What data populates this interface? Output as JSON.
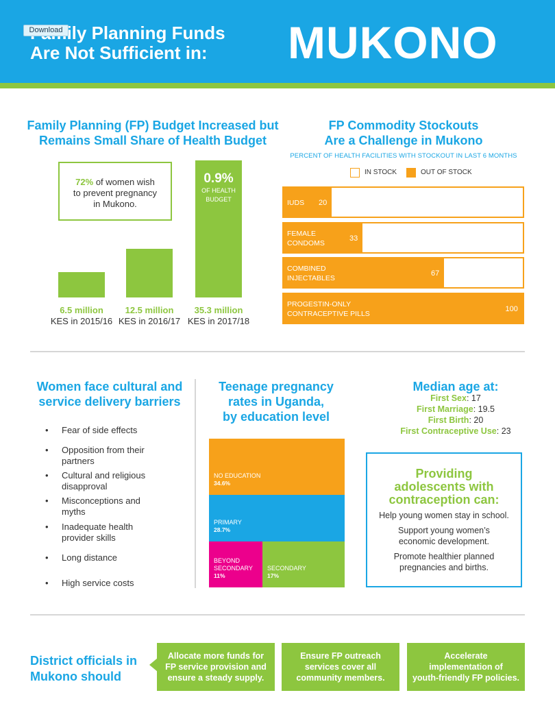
{
  "header": {
    "title_line1": "Family Planning Funds",
    "title_line2": "Are Not Sufficient in:",
    "city": "MUKONO",
    "download_label": "Download",
    "colors": {
      "blue": "#1aa6e4",
      "green": "#8dc63f",
      "orange": "#f7a11a",
      "magenta": "#ec008c"
    }
  },
  "budget": {
    "title_line1": "Family Planning (FP) Budget Increased but",
    "title_line2": "Remains Small Share of Health Budget",
    "callout": {
      "pct": "72%",
      "text1": "of women wish",
      "text2": "to prevent pregnancy",
      "text3": "in Mukono."
    },
    "share": {
      "value": "0.9%",
      "label1": "OF HEALTH",
      "label2": "BUDGET"
    }
  },
  "stockout": {
    "title_line1": "FP Commodity Stockouts",
    "title_line2": "Are a Challenge in Mukono",
    "subtitle": "PERCENT OF HEALTH FACILITIES WITH STOCKOUT IN LAST 6 MONTHS",
    "legend_in": "IN STOCK",
    "legend_out": "OUT OF STOCK"
  },
  "barriers": {
    "title_line1": "Women face cultural and",
    "title_line2": "service delivery barriers",
    "items": [
      {
        "line1": "Fear of side effects",
        "line2": ""
      },
      {
        "line1": "Opposition from their",
        "line2": "partners"
      },
      {
        "line1": "Cultural and religious",
        "line2": "disapproval"
      },
      {
        "line1": "Misconceptions and",
        "line2": "myths"
      },
      {
        "line1": "Inadequate health",
        "line2": "provider skills"
      },
      {
        "line1": "Long distance",
        "line2": ""
      },
      {
        "line1": "High service costs",
        "line2": ""
      }
    ]
  },
  "teen": {
    "title_line1": "Teenage pregnancy",
    "title_line2": "rates in Uganda,",
    "title_line3": "by education level"
  },
  "median": {
    "title": "Median age at:",
    "items": [
      {
        "key": "First Sex",
        "value": "17"
      },
      {
        "key": "First Marriage",
        "value": "19.5"
      },
      {
        "key": "First Birth",
        "value": "20"
      },
      {
        "key": "First Contraceptive Use",
        "value": "23"
      }
    ]
  },
  "adolescents": {
    "title_line1": "Providing",
    "title_line2": "adolescents with",
    "title_line3": "contraception can:",
    "items": [
      {
        "line1": "Help young women stay in school.",
        "line2": ""
      },
      {
        "line1": "Support young women’s",
        "line2": "economic development."
      },
      {
        "line1": "Promote healthier planned",
        "line2": "pregnancies and births."
      }
    ]
  },
  "officials": {
    "title_line1": "District officials in",
    "title_line2": "Mukono should",
    "actions": [
      {
        "line1": "Allocate more funds for",
        "line2": "FP service provision and",
        "line3": "ensure a steady supply."
      },
      {
        "line1": "Ensure FP outreach",
        "line2": "services cover all",
        "line3": "community members."
      },
      {
        "line1": "Accelerate",
        "line2": "implementation of",
        "line3": "youth-friendly FP policies."
      }
    ]
  },
  "chart_data": [
    {
      "type": "bar",
      "title": "Family Planning (FP) Budget Increased but Remains Small Share of Health Budget",
      "categories": [
        "KES in 2015/16",
        "KES in 2016/17",
        "KES in 2017/18"
      ],
      "value_labels": [
        "6.5 million",
        "12.5 million",
        "35.3 million"
      ],
      "values": [
        6.5,
        12.5,
        35.3
      ],
      "ylim": [
        0,
        35.3
      ],
      "color": "#8dc63f"
    },
    {
      "type": "bar",
      "title": "FP Commodity Stockouts Are a Challenge in Mukono",
      "subtitle": "PERCENT OF HEALTH FACILITIES WITH STOCKOUT IN LAST 6 MONTHS",
      "categories": [
        [
          "IUDS"
        ],
        [
          "FEMALE",
          "CONDOMS"
        ],
        [
          "COMBINED",
          "INJECTABLES"
        ],
        [
          "PROGESTIN-ONLY",
          "CONTRACEPTIVE PILLS"
        ]
      ],
      "values": [
        20,
        33,
        67,
        100
      ],
      "value_labels": [
        "20",
        "33",
        "67",
        "100"
      ],
      "xlim": [
        0,
        100
      ],
      "legend": [
        "IN STOCK",
        "OUT OF STOCK"
      ],
      "colors": {
        "in_stock": "#ffffff",
        "out_of_stock": "#f7a11a"
      }
    },
    {
      "type": "area",
      "title": "Teenage pregnancy rates in Uganda, by education level",
      "categories": [
        [
          "NO EDUCATION"
        ],
        [
          "PRIMARY"
        ],
        [
          "BEYOND",
          "SECONDARY"
        ],
        [
          "SECONDARY"
        ]
      ],
      "values": [
        34.6,
        28.7,
        11,
        17
      ],
      "value_labels": [
        "34.6%",
        "28.7%",
        "11%",
        "17%"
      ],
      "colors": [
        "#f7a11a",
        "#1aa6e4",
        "#ec008c",
        "#8dc63f"
      ]
    }
  ]
}
